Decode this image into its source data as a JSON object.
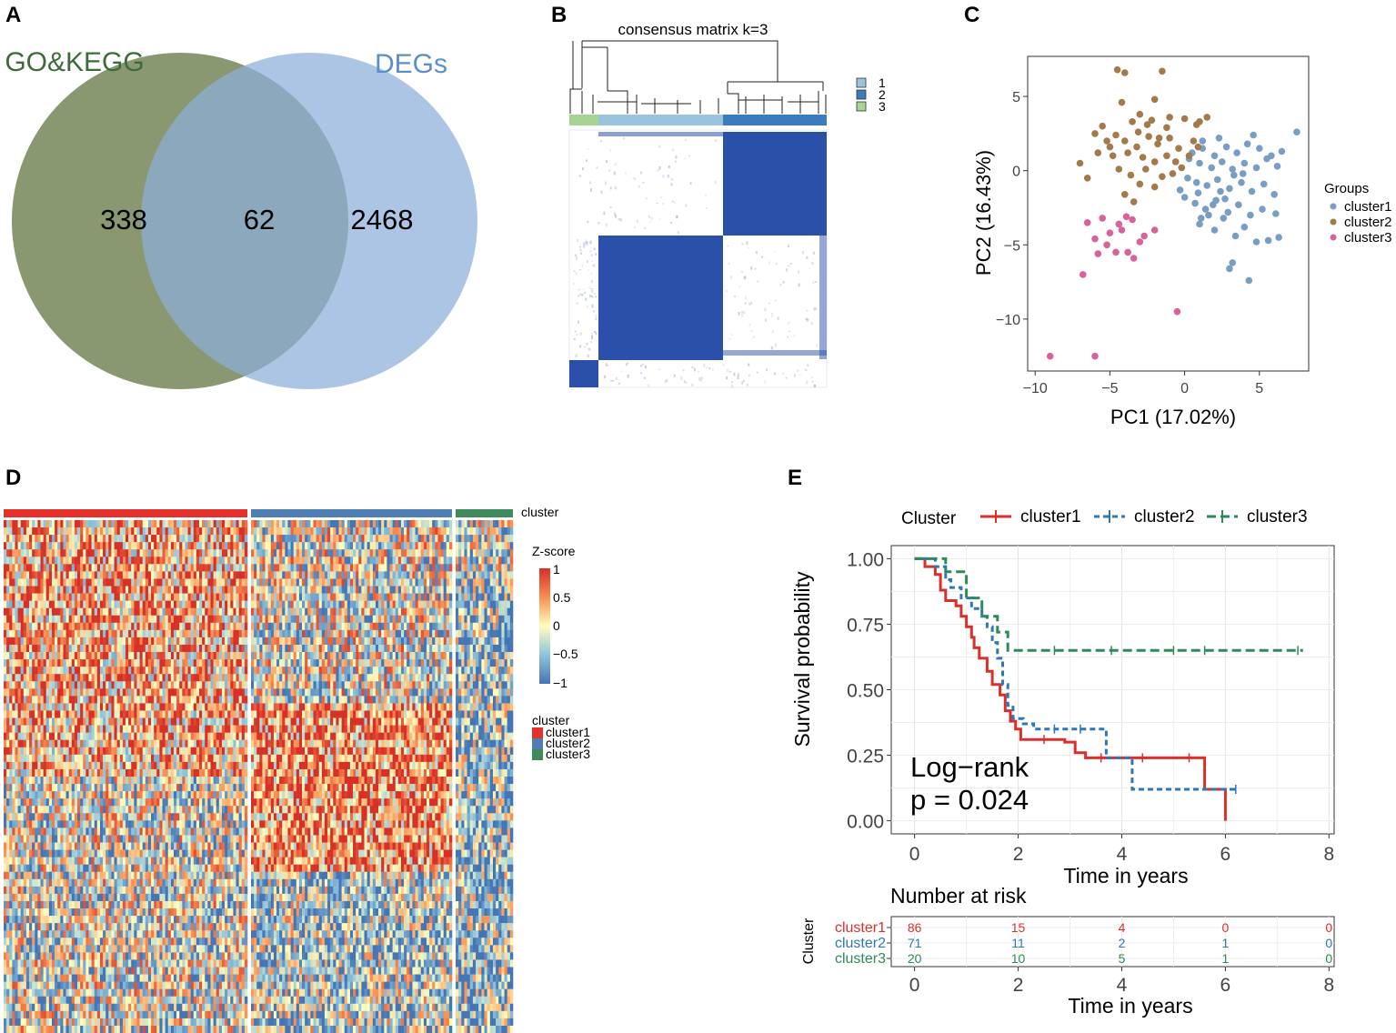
{
  "panels": {
    "a": {
      "letter": "A"
    },
    "b": {
      "letter": "B"
    },
    "c": {
      "letter": "C"
    },
    "d": {
      "letter": "D"
    },
    "e": {
      "letter": "E"
    }
  },
  "colors": {
    "go_circle": "#6f8150",
    "deg_circle": "#8eaedb",
    "go_label": "#3e6b3a",
    "deg_label": "#5b8fc9",
    "consensus_blue": "#2b50aa",
    "cluster1": "#7a9dc4",
    "cluster2": "#a47a4c",
    "cluster3": "#d8639a",
    "heat_cluster1": "#e6302b",
    "heat_cluster2": "#4f7fb2",
    "heat_cluster3": "#3e8a5c",
    "km_cluster1": "#d9302b",
    "km_cluster2": "#2f77b5",
    "km_cluster3": "#2e8b57"
  },
  "chart_data": [
    {
      "type": "venn",
      "panel": "A",
      "sets": [
        {
          "name": "GO&KEGG",
          "only": 338
        },
        {
          "name": "DEGs",
          "only": 2468
        }
      ],
      "intersection": 62
    },
    {
      "type": "heatmap",
      "panel": "B",
      "title": "consensus matrix k=3",
      "legend": [
        "1",
        "2",
        "3"
      ],
      "column_groups": [
        "3",
        "1",
        "2"
      ]
    },
    {
      "type": "scatter",
      "panel": "C",
      "xlabel": "PC1 (17.02%)",
      "ylabel": "PC2 (16.43%)",
      "xlim": [
        -10.5,
        8.3
      ],
      "ylim": [
        -13.5,
        7.7
      ],
      "xticks": [
        "−10",
        "−5",
        "0",
        "5"
      ],
      "xtick_values": [
        -10,
        -5,
        0,
        5
      ],
      "yticks": [
        "5",
        "0",
        "−5",
        "−10"
      ],
      "ytick_values": [
        5,
        0,
        -5,
        -10
      ],
      "legend_title": "Groups",
      "series": [
        {
          "name": "cluster1",
          "points": [
            [
              0.5,
              1.2
            ],
            [
              1.2,
              1.5
            ],
            [
              2.0,
              1.0
            ],
            [
              2.8,
              1.6
            ],
            [
              3.5,
              1.2
            ],
            [
              4.2,
              1.8
            ],
            [
              5.0,
              1.5
            ],
            [
              5.8,
              1.0
            ],
            [
              6.5,
              1.3
            ],
            [
              7.5,
              2.6
            ],
            [
              1.0,
              0.5
            ],
            [
              1.8,
              0.2
            ],
            [
              2.5,
              0.6
            ],
            [
              3.2,
              0.1
            ],
            [
              4.0,
              0.5
            ],
            [
              4.8,
              0.2
            ],
            [
              5.5,
              0.8
            ],
            [
              6.2,
              0.3
            ],
            [
              0.2,
              -0.5
            ],
            [
              0.8,
              -0.8
            ],
            [
              1.5,
              -1.0
            ],
            [
              2.2,
              -0.6
            ],
            [
              3.0,
              -1.2
            ],
            [
              3.8,
              -0.8
            ],
            [
              4.5,
              -1.4
            ],
            [
              5.3,
              -0.9
            ],
            [
              6.0,
              -1.6
            ],
            [
              0.0,
              -1.8
            ],
            [
              0.7,
              -2.2
            ],
            [
              1.4,
              -2.6
            ],
            [
              2.1,
              -2.0
            ],
            [
              2.9,
              -2.8
            ],
            [
              3.6,
              -2.3
            ],
            [
              4.4,
              -3.0
            ],
            [
              5.2,
              -2.6
            ],
            [
              6.1,
              -2.9
            ],
            [
              1.0,
              -3.6
            ],
            [
              2.0,
              -4.0
            ],
            [
              2.6,
              -3.2
            ],
            [
              3.4,
              -4.4
            ],
            [
              4.0,
              -3.8
            ],
            [
              4.8,
              -4.8
            ],
            [
              5.6,
              -4.7
            ],
            [
              6.3,
              -4.5
            ],
            [
              3.2,
              -6.2
            ],
            [
              3.0,
              -6.6
            ],
            [
              4.3,
              -7.4
            ],
            [
              1.6,
              -3.0
            ],
            [
              2.4,
              -1.4
            ],
            [
              3.3,
              -0.3
            ],
            [
              0.3,
              0.8
            ],
            [
              1.2,
              2.0
            ],
            [
              2.3,
              2.2
            ],
            [
              4.6,
              2.4
            ],
            [
              0.9,
              -1.5
            ],
            [
              1.9,
              -2.3
            ],
            [
              2.7,
              -1.9
            ],
            [
              3.9,
              -0.2
            ],
            [
              -0.3,
              -1.3
            ],
            [
              1.1,
              -3.2
            ]
          ]
        },
        {
          "name": "cluster2",
          "points": [
            [
              -4.5,
              6.8
            ],
            [
              -4.0,
              6.6
            ],
            [
              -1.5,
              6.7
            ],
            [
              -4.2,
              4.6
            ],
            [
              -2.0,
              4.8
            ],
            [
              -3.0,
              3.8
            ],
            [
              -3.5,
              3.3
            ],
            [
              -5.5,
              3.0
            ],
            [
              -2.5,
              3.1
            ],
            [
              -1.0,
              3.6
            ],
            [
              0.0,
              3.5
            ],
            [
              1.0,
              3.3
            ],
            [
              1.5,
              3.6
            ],
            [
              -6.0,
              2.5
            ],
            [
              -5.2,
              2.0
            ],
            [
              -4.6,
              2.4
            ],
            [
              -4.0,
              2.0
            ],
            [
              -3.2,
              1.6
            ],
            [
              -2.4,
              2.3
            ],
            [
              -1.8,
              1.8
            ],
            [
              -1.0,
              2.2
            ],
            [
              -0.4,
              1.5
            ],
            [
              0.6,
              2.0
            ],
            [
              -5.8,
              1.2
            ],
            [
              -4.8,
              1.0
            ],
            [
              -3.8,
              1.2
            ],
            [
              -2.8,
              0.9
            ],
            [
              -2.0,
              0.6
            ],
            [
              -1.2,
              1.0
            ],
            [
              -0.6,
              0.6
            ],
            [
              0.3,
              1.0
            ],
            [
              -4.4,
              0.1
            ],
            [
              -3.6,
              -0.3
            ],
            [
              -2.6,
              0.1
            ],
            [
              -1.5,
              -0.4
            ],
            [
              -0.8,
              -0.2
            ],
            [
              -3.0,
              -0.9
            ],
            [
              -4.0,
              -1.6
            ],
            [
              -2.0,
              -1.1
            ],
            [
              -7.0,
              0.5
            ],
            [
              -6.5,
              -0.5
            ],
            [
              -3.4,
              -2.1
            ],
            [
              -1.2,
              2.9
            ],
            [
              0.8,
              3.1
            ],
            [
              -2.2,
              3.4
            ],
            [
              -0.2,
              0.2
            ],
            [
              -5.0,
              1.6
            ],
            [
              -3.1,
              2.6
            ],
            [
              -1.7,
              2.2
            ],
            [
              0.9,
              1.6
            ]
          ]
        },
        {
          "name": "cluster3",
          "points": [
            [
              -6.5,
              -3.5
            ],
            [
              -5.5,
              -3.2
            ],
            [
              -3.5,
              -3.3
            ],
            [
              -2.0,
              -4.0
            ],
            [
              -5.0,
              -4.2
            ],
            [
              -4.2,
              -4.0
            ],
            [
              -6.0,
              -4.6
            ],
            [
              -5.2,
              -5.0
            ],
            [
              -4.6,
              -5.5
            ],
            [
              -3.8,
              -5.5
            ],
            [
              -6.8,
              -7.0
            ],
            [
              -3.0,
              -4.8
            ],
            [
              -0.5,
              -9.5
            ],
            [
              -9.0,
              -12.5
            ],
            [
              -6.0,
              -12.5
            ],
            [
              -4.4,
              -3.6
            ],
            [
              -5.8,
              -5.6
            ],
            [
              -3.4,
              -5.9
            ],
            [
              -2.7,
              -4.4
            ],
            [
              -3.9,
              -3.1
            ]
          ]
        }
      ]
    },
    {
      "type": "heatmap",
      "panel": "D",
      "title": "cluster",
      "scale_title": "Z-score",
      "scale_ticks": [
        "1",
        "0.5",
        "0",
        "−0.5",
        "−1"
      ],
      "scale_range": [
        -1,
        1
      ],
      "groups": [
        {
          "name": "cluster1",
          "columns": 86
        },
        {
          "name": "cluster2",
          "columns": 71
        },
        {
          "name": "cluster3",
          "columns": 20
        }
      ],
      "legend_title": "cluster",
      "legend": [
        "cluster1",
        "cluster2",
        "cluster3"
      ]
    },
    {
      "type": "line",
      "panel": "E",
      "legend_title": "Cluster",
      "xlabel": "Time in years",
      "ylabel": "Survival probability",
      "xlim": [
        -0.45,
        8.1
      ],
      "ylim": [
        -0.05,
        1.05
      ],
      "xticks": [
        "0",
        "2",
        "4",
        "6",
        "8"
      ],
      "xtick_values": [
        0,
        2,
        4,
        6,
        8
      ],
      "yticks": [
        "1.00",
        "0.75",
        "0.50",
        "0.25",
        "0.00"
      ],
      "ytick_values": [
        1.0,
        0.75,
        0.5,
        0.25,
        0.0
      ],
      "annotation": [
        "Log−rank",
        "p = 0.024"
      ],
      "series": [
        {
          "name": "cluster1",
          "steps": [
            [
              0,
              1.0
            ],
            [
              0.2,
              0.97
            ],
            [
              0.4,
              0.94
            ],
            [
              0.5,
              0.88
            ],
            [
              0.6,
              0.84
            ],
            [
              0.8,
              0.82
            ],
            [
              0.9,
              0.78
            ],
            [
              1.0,
              0.74
            ],
            [
              1.1,
              0.7
            ],
            [
              1.15,
              0.66
            ],
            [
              1.25,
              0.62
            ],
            [
              1.4,
              0.57
            ],
            [
              1.5,
              0.52
            ],
            [
              1.65,
              0.48
            ],
            [
              1.75,
              0.42
            ],
            [
              1.85,
              0.38
            ],
            [
              1.95,
              0.35
            ],
            [
              2.05,
              0.31
            ],
            [
              2.9,
              0.3
            ],
            [
              3.1,
              0.26
            ],
            [
              3.3,
              0.24
            ],
            [
              5.6,
              0.12
            ],
            [
              6.0,
              0.0
            ]
          ],
          "censors": [
            [
              2.5,
              0.31
            ],
            [
              3.6,
              0.24
            ],
            [
              4.4,
              0.24
            ],
            [
              5.3,
              0.24
            ]
          ]
        },
        {
          "name": "cluster2",
          "steps": [
            [
              0,
              1.0
            ],
            [
              0.4,
              0.97
            ],
            [
              0.6,
              0.92
            ],
            [
              0.7,
              0.89
            ],
            [
              0.9,
              0.85
            ],
            [
              1.1,
              0.81
            ],
            [
              1.3,
              0.78
            ],
            [
              1.4,
              0.74
            ],
            [
              1.5,
              0.68
            ],
            [
              1.6,
              0.62
            ],
            [
              1.7,
              0.52
            ],
            [
              1.8,
              0.44
            ],
            [
              1.9,
              0.39
            ],
            [
              2.1,
              0.37
            ],
            [
              2.3,
              0.35
            ],
            [
              3.7,
              0.24
            ],
            [
              4.2,
              0.12
            ],
            [
              6.2,
              0.12
            ]
          ],
          "censors": [
            [
              2.7,
              0.35
            ],
            [
              3.2,
              0.35
            ],
            [
              6.2,
              0.12
            ]
          ]
        },
        {
          "name": "cluster3",
          "steps": [
            [
              0,
              1.0
            ],
            [
              0.6,
              0.95
            ],
            [
              1.0,
              0.85
            ],
            [
              1.3,
              0.78
            ],
            [
              1.6,
              0.72
            ],
            [
              1.8,
              0.65
            ],
            [
              7.5,
              0.65
            ]
          ],
          "censors": [
            [
              2.7,
              0.65
            ],
            [
              3.8,
              0.65
            ],
            [
              5.0,
              0.65
            ],
            [
              5.6,
              0.65
            ],
            [
              7.4,
              0.65
            ]
          ]
        }
      ],
      "risk_table": {
        "title": "Number at risk",
        "ylabel": "Cluster",
        "xlabel": "Time in years",
        "times": [
          0,
          2,
          4,
          6,
          8
        ],
        "rows": [
          {
            "name": "cluster1",
            "counts": [
              "86",
              "15",
              "4",
              "0",
              "0"
            ]
          },
          {
            "name": "cluster2",
            "counts": [
              "71",
              "11",
              "2",
              "1",
              "0"
            ]
          },
          {
            "name": "cluster3",
            "counts": [
              "20",
              "10",
              "5",
              "1",
              "0"
            ]
          }
        ]
      }
    }
  ]
}
